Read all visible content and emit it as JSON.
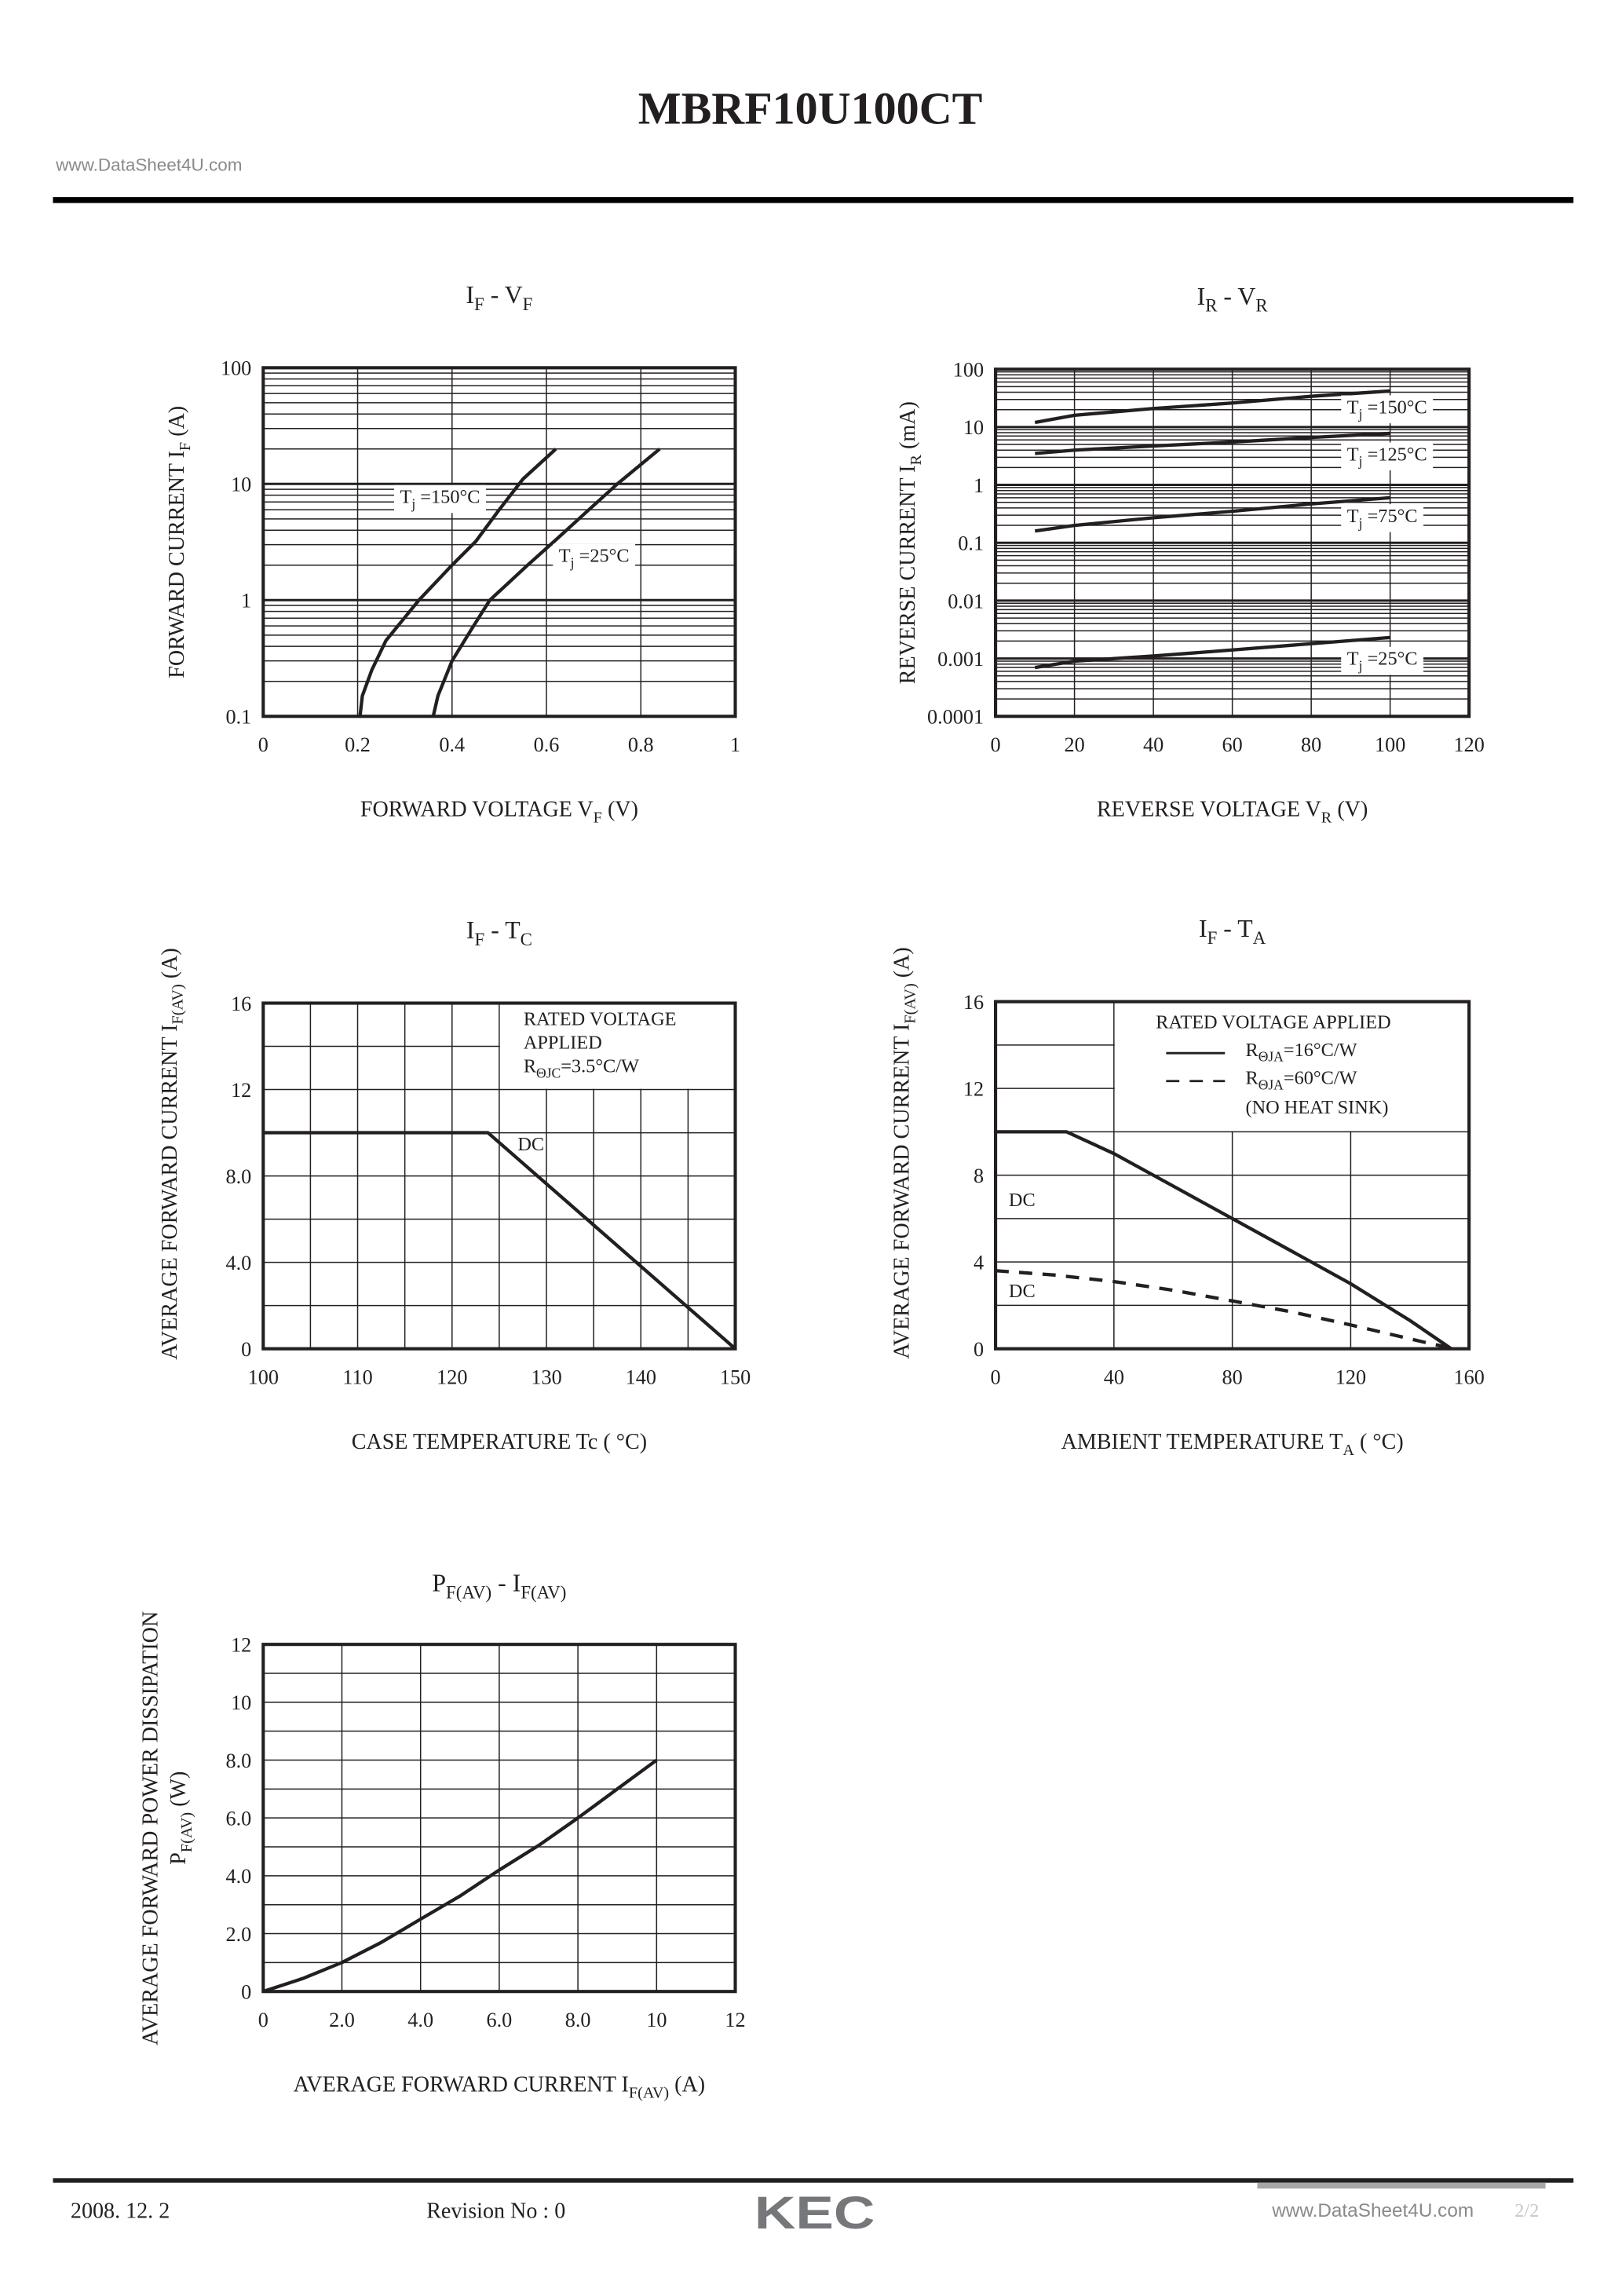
{
  "header": {
    "title": "MBRF10U100CT",
    "watermark": "www.DataSheet4U.com"
  },
  "footer": {
    "date": "2008. 12. 2",
    "revision": "Revision No : 0",
    "logo": "KEC",
    "watermark": "www.DataSheet4U.com",
    "page": "2/2"
  },
  "colors": {
    "ink": "#231f20",
    "watermark": "#8a8a8a",
    "logo": "#76777a",
    "grid": "#231f20"
  },
  "chart_data": [
    {
      "type": "line",
      "title": [
        {
          "t": "I"
        },
        {
          "t": "F",
          "sub": true
        },
        {
          "t": "  -  V"
        },
        {
          "t": "F",
          "sub": true
        }
      ],
      "xlabel": [
        {
          "t": "FORWARD VOLTAGE  V"
        },
        {
          "t": "F",
          "sub": true
        },
        {
          "t": " (V)"
        }
      ],
      "ylabel": [
        [
          {
            "t": "FORWARD CURRENT  I"
          },
          {
            "t": "F",
            "sub": true
          },
          {
            "t": " (A)"
          }
        ]
      ],
      "xscale": "linear",
      "yscale": "log",
      "xlim": [
        0,
        1
      ],
      "ylim": [
        0.1,
        100
      ],
      "xticks": [
        "0",
        "0.2",
        "0.4",
        "0.6",
        "0.8",
        "1"
      ],
      "yticks": [
        "0.1",
        "1",
        "10",
        "100"
      ],
      "grid": true,
      "series": [
        {
          "label": [
            {
              "t": "T"
            },
            {
              "t": "j",
              "sub": true
            },
            {
              "t": " =150°C"
            }
          ],
          "points": [
            [
              0.205,
              0.1
            ],
            [
              0.21,
              0.15
            ],
            [
              0.23,
              0.25
            ],
            [
              0.26,
              0.45
            ],
            [
              0.33,
              1
            ],
            [
              0.4,
              2
            ],
            [
              0.45,
              3.2
            ],
            [
              0.5,
              6
            ],
            [
              0.55,
              11
            ],
            [
              0.62,
              20
            ]
          ]
        },
        {
          "label": [
            {
              "t": "T"
            },
            {
              "t": "j",
              "sub": true
            },
            {
              "t": " =25°C"
            }
          ],
          "points": [
            [
              0.36,
              0.1
            ],
            [
              0.37,
              0.15
            ],
            [
              0.4,
              0.3
            ],
            [
              0.44,
              0.55
            ],
            [
              0.48,
              1
            ],
            [
              0.56,
              2
            ],
            [
              0.62,
              3.3
            ],
            [
              0.69,
              6
            ],
            [
              0.75,
              10
            ],
            [
              0.84,
              20
            ]
          ]
        }
      ]
    },
    {
      "type": "line",
      "title": [
        {
          "t": "I"
        },
        {
          "t": "R",
          "sub": true
        },
        {
          "t": "  -  V"
        },
        {
          "t": "R",
          "sub": true
        }
      ],
      "xlabel": [
        {
          "t": "REVERSE VOLTAGE  V"
        },
        {
          "t": "R",
          "sub": true
        },
        {
          "t": " (V)"
        }
      ],
      "ylabel": [
        [
          {
            "t": "REVERSE CURRENT  I"
          },
          {
            "t": "R",
            "sub": true
          },
          {
            "t": " (mA)"
          }
        ]
      ],
      "xscale": "linear",
      "yscale": "log",
      "xlim": [
        0,
        120
      ],
      "ylim": [
        0.0001,
        100
      ],
      "xticks": [
        "0",
        "20",
        "40",
        "60",
        "80",
        "100",
        "120"
      ],
      "yticks": [
        "0.0001",
        "0.001",
        "0.01",
        "0.1",
        "1",
        "10",
        "100"
      ],
      "grid": true,
      "series": [
        {
          "label": [
            {
              "t": "T"
            },
            {
              "t": "j",
              "sub": true
            },
            {
              "t": " =150°C"
            }
          ],
          "points": [
            [
              10,
              12
            ],
            [
              20,
              16
            ],
            [
              40,
              21
            ],
            [
              60,
              26
            ],
            [
              80,
              34
            ],
            [
              100,
              42
            ]
          ]
        },
        {
          "label": [
            {
              "t": "T"
            },
            {
              "t": "j",
              "sub": true
            },
            {
              "t": " =125°C"
            }
          ],
          "points": [
            [
              10,
              3.5
            ],
            [
              20,
              4
            ],
            [
              40,
              4.7
            ],
            [
              60,
              5.5
            ],
            [
              80,
              6.6
            ],
            [
              100,
              7.8
            ]
          ]
        },
        {
          "label": [
            {
              "t": "T"
            },
            {
              "t": "j",
              "sub": true
            },
            {
              "t": " =75°C"
            }
          ],
          "points": [
            [
              10,
              0.16
            ],
            [
              20,
              0.2
            ],
            [
              40,
              0.27
            ],
            [
              60,
              0.35
            ],
            [
              80,
              0.47
            ],
            [
              100,
              0.6
            ]
          ]
        },
        {
          "label": [
            {
              "t": "T"
            },
            {
              "t": "j",
              "sub": true
            },
            {
              "t": " =25°C"
            }
          ],
          "points": [
            [
              10,
              0.0007
            ],
            [
              20,
              0.0009
            ],
            [
              40,
              0.0011
            ],
            [
              60,
              0.0014
            ],
            [
              80,
              0.0018
            ],
            [
              100,
              0.0023
            ]
          ]
        }
      ]
    },
    {
      "type": "line",
      "title": [
        {
          "t": "I"
        },
        {
          "t": "F",
          "sub": true
        },
        {
          "t": "  -  T"
        },
        {
          "t": "C",
          "sub": true
        }
      ],
      "xlabel": [
        {
          "t": "CASE TEMPERATURE  Tc ( °C)"
        }
      ],
      "ylabel": [
        [
          {
            "t": "AVERAGE FORWARD CURRENT  I"
          },
          {
            "t": "F(AV)",
            "sub": true
          },
          {
            "t": " (A)"
          }
        ]
      ],
      "xscale": "linear",
      "yscale": "linear",
      "xlim": [
        100,
        150
      ],
      "ylim": [
        0,
        16
      ],
      "xticks": [
        "100",
        "110",
        "120",
        "130",
        "140",
        "150"
      ],
      "yticks": [
        "0",
        "4.0",
        "8.0",
        "12",
        "16"
      ],
      "grid": true,
      "legend_text": [
        [
          {
            "t": "RATED VOLTAGE"
          }
        ],
        [
          {
            "t": "APPLIED"
          }
        ],
        [
          {
            "t": "R"
          },
          {
            "t": "ΘJC",
            "sub": true
          },
          {
            "t": "=3.5°C/W"
          }
        ]
      ],
      "series": [
        {
          "label": [
            {
              "t": "DC"
            }
          ],
          "points": [
            [
              100,
              10
            ],
            [
              123.8,
              10
            ],
            [
              150,
              0
            ]
          ]
        }
      ]
    },
    {
      "type": "line",
      "title": [
        {
          "t": "I"
        },
        {
          "t": "F",
          "sub": true
        },
        {
          "t": "  -  T"
        },
        {
          "t": "A",
          "sub": true
        }
      ],
      "xlabel": [
        {
          "t": "AMBIENT TEMPERATURE  T"
        },
        {
          "t": "A",
          "sub": true
        },
        {
          "t": " ( °C)"
        }
      ],
      "ylabel": [
        [
          {
            "t": "AVERAGE FORWARD CURRENT  I"
          },
          {
            "t": "F(AV)",
            "sub": true
          },
          {
            "t": " (A)"
          }
        ]
      ],
      "xscale": "linear",
      "yscale": "linear",
      "xlim": [
        0,
        160
      ],
      "ylim": [
        0,
        16
      ],
      "xticks": [
        "0",
        "40",
        "80",
        "120",
        "160"
      ],
      "yticks": [
        "0",
        "4",
        "8",
        "12",
        "16"
      ],
      "grid": true,
      "legend_title": [
        {
          "t": "RATED VOLTAGE APPLIED"
        }
      ],
      "legend_note": [
        {
          "t": "(NO HEAT SINK)"
        }
      ],
      "series": [
        {
          "name": [
            {
              "t": "R"
            },
            {
              "t": "ΘJA",
              "sub": true
            },
            {
              "t": "=16°C/W"
            }
          ],
          "style": "solid",
          "label": [
            {
              "t": "DC"
            }
          ],
          "points": [
            [
              0,
              10
            ],
            [
              24,
              10
            ],
            [
              40,
              9
            ],
            [
              60,
              7.5
            ],
            [
              80,
              6
            ],
            [
              100,
              4.5
            ],
            [
              120,
              3
            ],
            [
              140,
              1.3
            ],
            [
              154,
              0
            ]
          ]
        },
        {
          "name": [
            {
              "t": "R"
            },
            {
              "t": "ΘJA",
              "sub": true
            },
            {
              "t": "=60°C/W"
            }
          ],
          "style": "dashed",
          "label": [
            {
              "t": "DC"
            }
          ],
          "points": [
            [
              0,
              3.6
            ],
            [
              20,
              3.4
            ],
            [
              40,
              3.1
            ],
            [
              60,
              2.7
            ],
            [
              80,
              2.2
            ],
            [
              100,
              1.7
            ],
            [
              120,
              1.1
            ],
            [
              145,
              0.3
            ],
            [
              155,
              0
            ]
          ]
        }
      ]
    },
    {
      "type": "line",
      "title": [
        {
          "t": "P"
        },
        {
          "t": "F(AV)",
          "sub": true
        },
        {
          "t": "  -  I"
        },
        {
          "t": "F(AV)",
          "sub": true
        }
      ],
      "xlabel": [
        {
          "t": "AVERAGE FORWARD CURRENT  I"
        },
        {
          "t": "F(AV)",
          "sub": true
        },
        {
          "t": " (A)"
        }
      ],
      "ylabel": [
        [
          {
            "t": "AVERAGE FORWARD POWER DISSIPATION"
          }
        ],
        [
          {
            "t": "P"
          },
          {
            "t": "F(AV)",
            "sub": true
          },
          {
            "t": " (W)"
          }
        ]
      ],
      "xscale": "linear",
      "yscale": "linear",
      "xlim": [
        0,
        12
      ],
      "ylim": [
        0,
        12
      ],
      "xticks": [
        "0",
        "2.0",
        "4.0",
        "6.0",
        "8.0",
        "10",
        "12"
      ],
      "yticks": [
        "0",
        "2.0",
        "4.0",
        "6.0",
        "8.0",
        "10",
        "12"
      ],
      "grid": true,
      "series": [
        {
          "points": [
            [
              0,
              0
            ],
            [
              1,
              0.45
            ],
            [
              2,
              1
            ],
            [
              3,
              1.7
            ],
            [
              4,
              2.5
            ],
            [
              5,
              3.3
            ],
            [
              6,
              4.2
            ],
            [
              7,
              5.05
            ],
            [
              8,
              6
            ],
            [
              9,
              7
            ],
            [
              10,
              8
            ]
          ]
        }
      ]
    }
  ]
}
